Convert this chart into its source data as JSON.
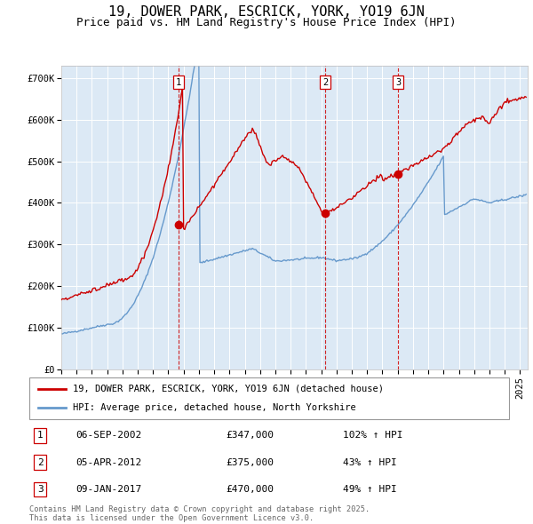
{
  "title": "19, DOWER PARK, ESCRICK, YORK, YO19 6JN",
  "subtitle": "Price paid vs. HM Land Registry's House Price Index (HPI)",
  "legend_red": "19, DOWER PARK, ESCRICK, YORK, YO19 6JN (detached house)",
  "legend_blue": "HPI: Average price, detached house, North Yorkshire",
  "footnote": "Contains HM Land Registry data © Crown copyright and database right 2025.\nThis data is licensed under the Open Government Licence v3.0.",
  "transactions": [
    {
      "num": 1,
      "date": "06-SEP-2002",
      "price": 347000,
      "pct": "102%",
      "dir": "↑"
    },
    {
      "num": 2,
      "date": "05-APR-2012",
      "price": 375000,
      "pct": "43%",
      "dir": "↑"
    },
    {
      "num": 3,
      "date": "09-JAN-2017",
      "price": 470000,
      "pct": "49%",
      "dir": "↑"
    }
  ],
  "transaction_dates_decimal": [
    2002.68,
    2012.26,
    2017.02
  ],
  "transaction_prices": [
    347000,
    375000,
    470000
  ],
  "ylim": [
    0,
    730000
  ],
  "xlim_start": 1995.0,
  "xlim_end": 2025.5,
  "background_color": "#dce9f5",
  "grid_color": "#ffffff",
  "red_color": "#cc0000",
  "blue_color": "#6699cc",
  "title_fontsize": 11,
  "subtitle_fontsize": 9,
  "tick_fontsize": 7.5
}
